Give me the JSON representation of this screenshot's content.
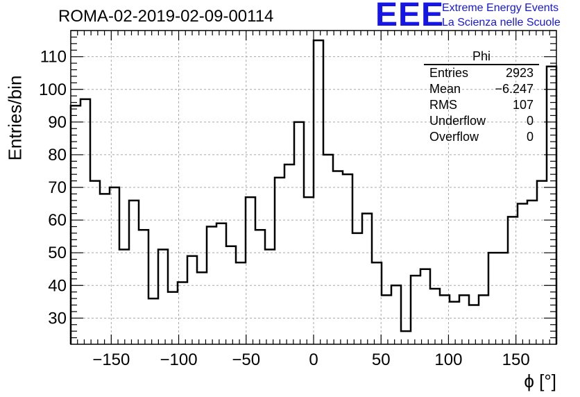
{
  "title": "ROMA-02-2019-02-09-00114",
  "logo": {
    "mark": "EEE",
    "line1": "Extreme Energy Events",
    "line2": "La Scienza nelle Scuole",
    "color": "#1515e6"
  },
  "stats": {
    "name": "Phi",
    "rows": [
      {
        "label": "Entries",
        "value": "2923"
      },
      {
        "label": "Mean",
        "value": "−6.247"
      },
      {
        "label": "RMS",
        "value": "107"
      },
      {
        "label": "Underflow",
        "value": "0"
      },
      {
        "label": "Overflow",
        "value": "0"
      }
    ]
  },
  "chart_data": {
    "type": "bar",
    "style": "step-histogram",
    "title": "ROMA-02-2019-02-09-00114",
    "xlabel": "ϕ [°]",
    "ylabel": "Entries/bin",
    "xlim": [
      -180,
      180
    ],
    "ylim": [
      22,
      118
    ],
    "bin_width": 7.2,
    "x_ticks": [
      -150,
      -100,
      -50,
      0,
      50,
      100,
      150
    ],
    "y_ticks": [
      30,
      40,
      50,
      60,
      70,
      80,
      90,
      100,
      110
    ],
    "grid": true,
    "values": [
      95,
      97,
      72,
      68,
      70,
      51,
      66,
      57,
      36,
      51,
      38,
      41,
      49,
      44,
      58,
      59,
      52,
      47,
      67,
      57,
      51,
      73,
      77,
      90,
      67,
      115,
      80,
      75,
      74,
      56,
      62,
      47,
      37,
      40,
      26,
      43,
      45,
      39,
      37,
      35,
      37,
      34,
      37,
      50,
      50,
      61,
      65,
      66,
      72,
      107
    ]
  }
}
